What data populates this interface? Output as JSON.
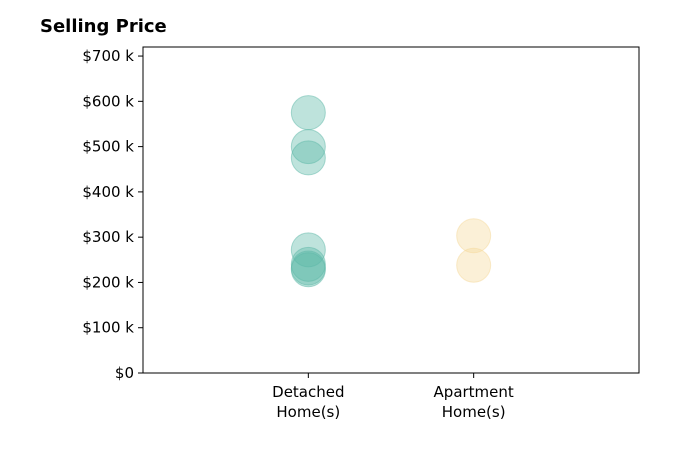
{
  "chart_data": {
    "type": "scatter",
    "title": "Selling Price",
    "xlabel": "",
    "ylabel": "",
    "categories": [
      "Detached\nHome(s)",
      "Apartment\nHome(s)"
    ],
    "y_ticks": [
      "$0",
      "$100 k",
      "$200 k",
      "$300 k",
      "$400 k",
      "$500 k",
      "$600 k",
      "$700 k"
    ],
    "y_tick_values": [
      0,
      100000,
      200000,
      300000,
      400000,
      500000,
      600000,
      700000
    ],
    "ylim": [
      0,
      720000
    ],
    "xlim": [
      -1,
      2
    ],
    "grid": false,
    "series": [
      {
        "category": "Detached\nHome(s)",
        "color": "#5db8a8",
        "values": [
          575000,
          500000,
          475000,
          272000,
          240000,
          232000,
          228000
        ]
      },
      {
        "category": "Apartment\nHome(s)",
        "color": "#f5d99b",
        "values": [
          303000,
          238000
        ]
      }
    ]
  }
}
